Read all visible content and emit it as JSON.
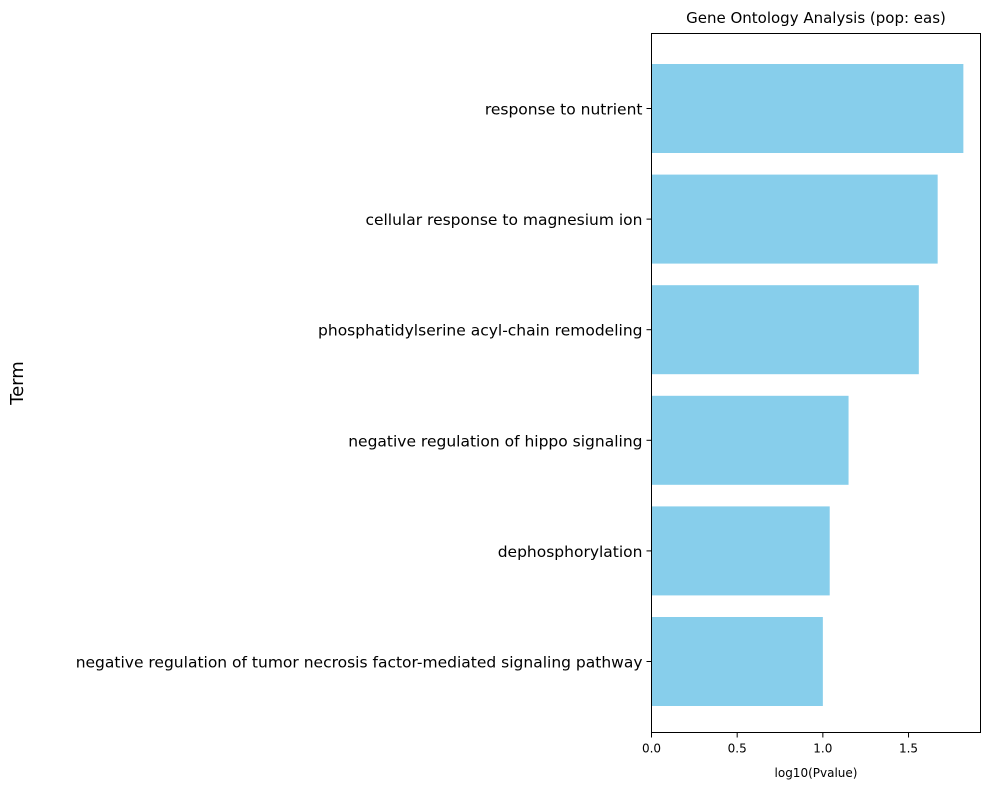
{
  "chart_data": {
    "type": "bar",
    "orientation": "horizontal",
    "title": "Gene Ontology Analysis (pop: eas)",
    "xlabel": "log10(Pvalue)",
    "ylabel": "Term",
    "categories": [
      "response to nutrient",
      "cellular response to magnesium ion",
      "phosphatidylserine acyl-chain remodeling",
      "negative regulation of hippo signaling",
      "dephosphorylation",
      "negative regulation of tumor necrosis factor-mediated signaling pathway"
    ],
    "values": [
      1.82,
      1.67,
      1.56,
      1.15,
      1.04,
      1.0
    ],
    "xlim": [
      0,
      1.92
    ],
    "xticks": [
      "0.0",
      "0.5",
      "1.0",
      "1.5"
    ],
    "bar_color": "#87CEEB",
    "grid": false,
    "legend": "none"
  }
}
